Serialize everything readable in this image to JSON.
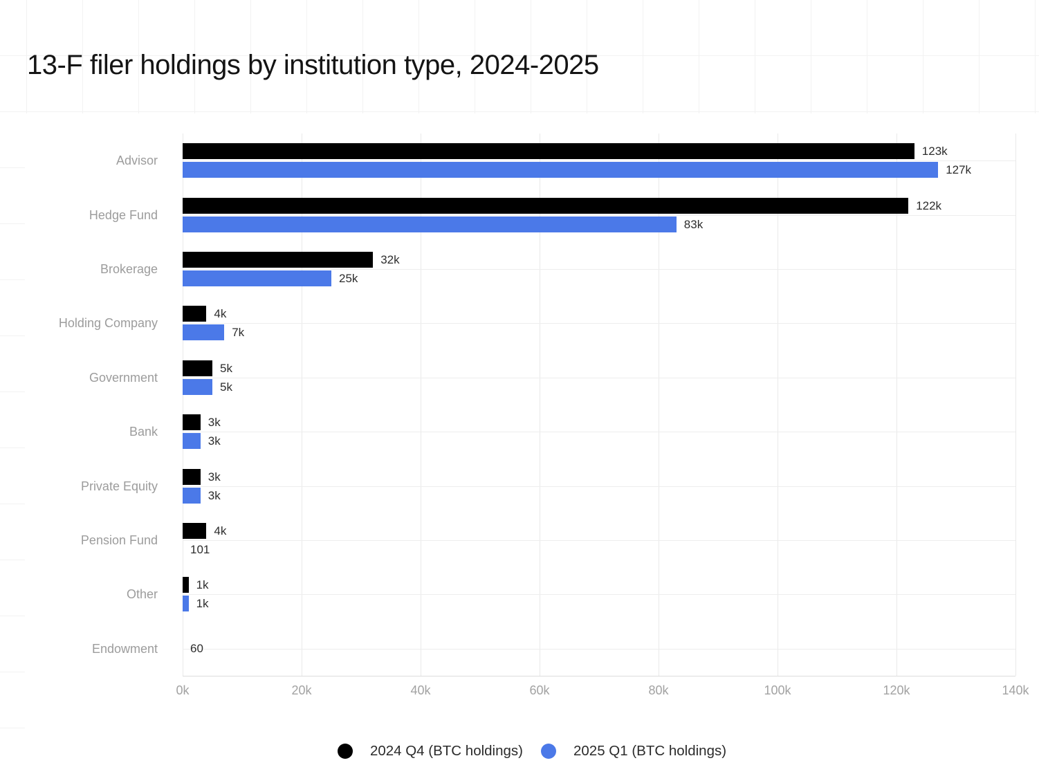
{
  "title": "13-F filer holdings by institution type, 2024-2025",
  "chart_data": {
    "type": "bar",
    "orientation": "horizontal",
    "title": "13-F filer holdings by institution type, 2024-2025",
    "categories": [
      "Advisor",
      "Hedge Fund",
      "Brokerage",
      "Holding Company",
      "Government",
      "Bank",
      "Private Equity",
      "Pension Fund",
      "Other",
      "Endowment"
    ],
    "series": [
      {
        "name": "2024 Q4 (BTC holdings)",
        "color": "#000000",
        "values": [
          123000,
          122000,
          32000,
          4000,
          5000,
          3000,
          3000,
          4000,
          1000,
          60
        ],
        "labels": [
          "123k",
          "122k",
          "32k",
          "4k",
          "5k",
          "3k",
          "3k",
          "4k",
          "1k",
          "60"
        ]
      },
      {
        "name": "2025 Q1 (BTC holdings)",
        "color": "#4b79e8",
        "values": [
          127000,
          83000,
          25000,
          7000,
          5000,
          3000,
          3000,
          101,
          1000,
          null
        ],
        "labels": [
          "127k",
          "83k",
          "25k",
          "7k",
          "5k",
          "3k",
          "3k",
          "101",
          "1k",
          null
        ]
      }
    ],
    "xlabel": "",
    "ylabel": "",
    "x_ticks": [
      "0k",
      "20k",
      "40k",
      "60k",
      "80k",
      "100k",
      "120k",
      "140k"
    ],
    "xlim": [
      0,
      140000
    ],
    "grid": true,
    "legend_position": "bottom"
  }
}
